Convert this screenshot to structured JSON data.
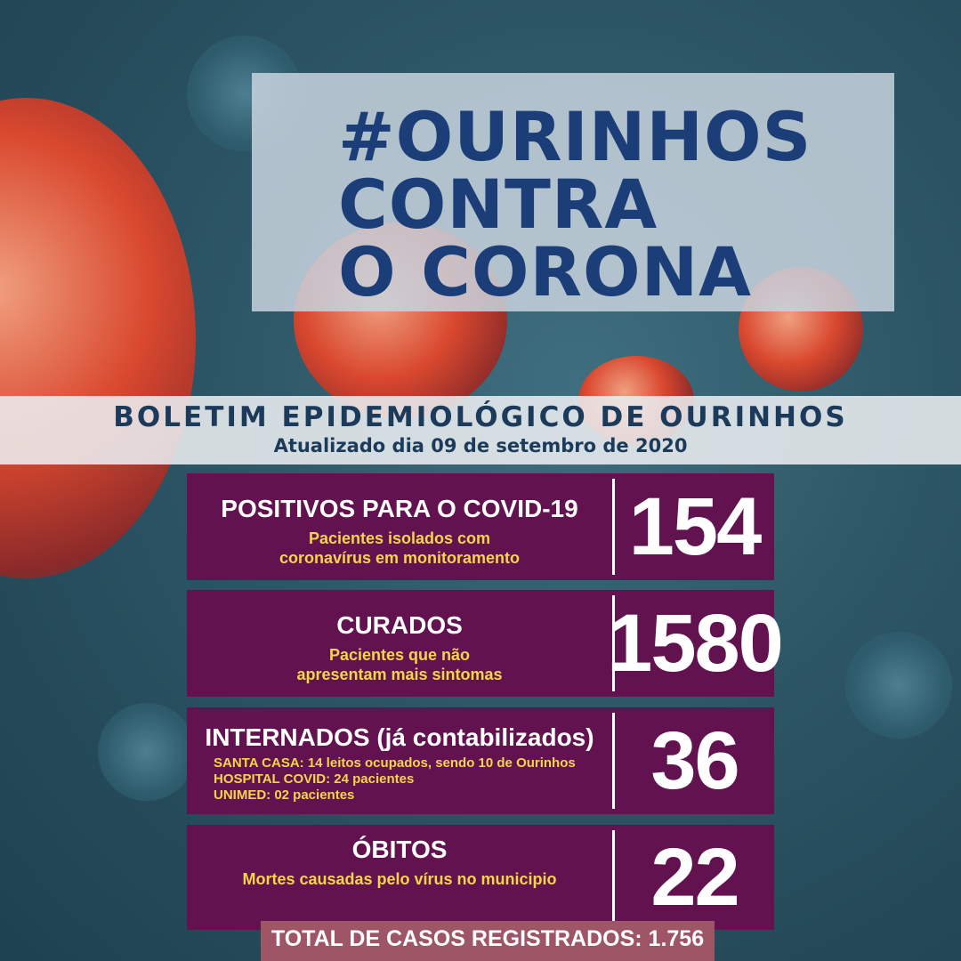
{
  "header": {
    "title_lines": [
      "#OURINHOS",
      "CONTRA",
      "O CORONA"
    ]
  },
  "banner": {
    "title": "BOLETIM EPIDEMIOLÓGICO DE OURINHOS",
    "subtitle": "Atualizado dia 09 de setembro de 2020"
  },
  "cards": [
    {
      "title": "POSITIVOS PARA O COVID-19",
      "desc": [
        "Pacientes isolados com",
        "coronavírus em monitoramento"
      ],
      "value": "154"
    },
    {
      "title": "CURADOS",
      "desc": [
        "Pacientes que não",
        "apresentam mais sintomas"
      ],
      "value": "1580"
    },
    {
      "title": "INTERNADOS (já contabilizados)",
      "desc": [
        "SANTA CASA: 14  leitos ocupados, sendo 10 de Ourinhos",
        "HOSPITAL COVID: 24 pacientes",
        "UNIMED: 02 pacientes"
      ],
      "value": "36"
    },
    {
      "title": "ÓBITOS",
      "desc": [
        "Mortes causadas pelo vírus no municipio"
      ],
      "value": "22"
    }
  ],
  "total": "TOTAL DE CASOS REGISTRADOS: 1.756",
  "colors": {
    "card": "#62134f",
    "accent_text": "#f6d54a",
    "title": "#1b3d78",
    "total_bar": "#9e5566"
  }
}
